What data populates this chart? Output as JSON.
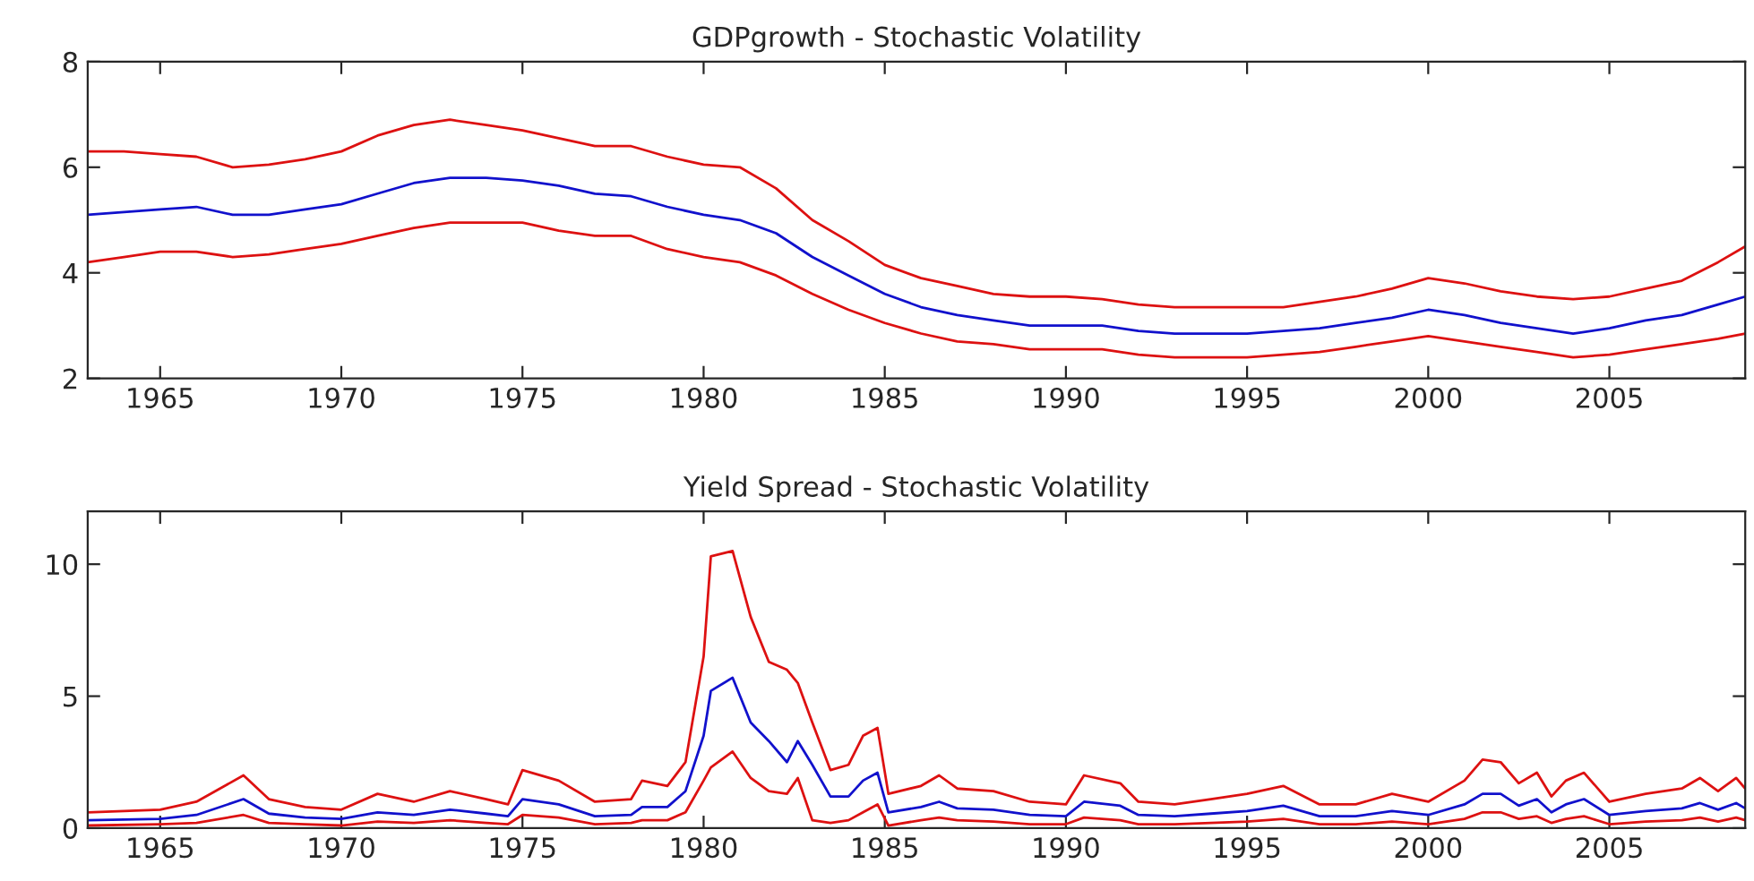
{
  "chart_data": [
    {
      "type": "line",
      "title": "GDPgrowth - Stochastic Volatility",
      "xlim": [
        1963,
        2008.75
      ],
      "xticks": [
        1965,
        1970,
        1975,
        1980,
        1985,
        1990,
        1995,
        2000,
        2005
      ],
      "ylim": [
        2,
        8
      ],
      "yticks": [
        2,
        4,
        6,
        8
      ],
      "grid": false,
      "legend": false,
      "line_style": "solid",
      "marker": "none",
      "x": [
        1963,
        1964,
        1965,
        1966,
        1967,
        1968,
        1969,
        1970,
        1971,
        1972,
        1973,
        1974,
        1975,
        1976,
        1977,
        1978,
        1979,
        1980,
        1981,
        1982,
        1983,
        1984,
        1985,
        1986,
        1987,
        1988,
        1989,
        1990,
        1991,
        1992,
        1993,
        1994,
        1995,
        1996,
        1997,
        1998,
        1999,
        2000,
        2001,
        2002,
        2003,
        2004,
        2005,
        2006,
        2007,
        2008,
        2008.75
      ],
      "series": [
        {
          "color": "#dd1111",
          "values": [
            6.3,
            6.3,
            6.25,
            6.2,
            6.0,
            6.05,
            6.15,
            6.3,
            6.6,
            6.8,
            6.9,
            6.8,
            6.7,
            6.55,
            6.4,
            6.4,
            6.2,
            6.05,
            6.0,
            5.6,
            5.0,
            4.6,
            4.15,
            3.9,
            3.75,
            3.6,
            3.55,
            3.55,
            3.5,
            3.4,
            3.35,
            3.35,
            3.35,
            3.35,
            3.45,
            3.55,
            3.7,
            3.9,
            3.8,
            3.65,
            3.55,
            3.5,
            3.55,
            3.7,
            3.85,
            4.2,
            4.5
          ]
        },
        {
          "color": "#1111cc",
          "values": [
            5.1,
            5.15,
            5.2,
            5.25,
            5.1,
            5.1,
            5.2,
            5.3,
            5.5,
            5.7,
            5.8,
            5.8,
            5.75,
            5.65,
            5.5,
            5.45,
            5.25,
            5.1,
            5.0,
            4.75,
            4.3,
            3.95,
            3.6,
            3.35,
            3.2,
            3.1,
            3.0,
            3.0,
            3.0,
            2.9,
            2.85,
            2.85,
            2.85,
            2.9,
            2.95,
            3.05,
            3.15,
            3.3,
            3.2,
            3.05,
            2.95,
            2.85,
            2.95,
            3.1,
            3.2,
            3.4,
            3.55
          ]
        },
        {
          "color": "#dd1111",
          "values": [
            4.2,
            4.3,
            4.4,
            4.4,
            4.3,
            4.35,
            4.45,
            4.55,
            4.7,
            4.85,
            4.95,
            4.95,
            4.95,
            4.8,
            4.7,
            4.7,
            4.45,
            4.3,
            4.2,
            3.95,
            3.6,
            3.3,
            3.05,
            2.85,
            2.7,
            2.65,
            2.55,
            2.55,
            2.55,
            2.45,
            2.4,
            2.4,
            2.4,
            2.45,
            2.5,
            2.6,
            2.7,
            2.8,
            2.7,
            2.6,
            2.5,
            2.4,
            2.45,
            2.55,
            2.65,
            2.75,
            2.85
          ]
        }
      ]
    },
    {
      "type": "line",
      "title": "Yield Spread - Stochastic Volatility",
      "xlim": [
        1963,
        2008.75
      ],
      "xticks": [
        1965,
        1970,
        1975,
        1980,
        1985,
        1990,
        1995,
        2000,
        2005
      ],
      "ylim": [
        0,
        12
      ],
      "yticks": [
        0,
        5,
        10
      ],
      "grid": false,
      "legend": false,
      "line_style": "solid",
      "marker": "none",
      "x": [
        1963,
        1965,
        1966,
        1967.3,
        1968,
        1969,
        1970,
        1971,
        1972,
        1973,
        1974,
        1974.6,
        1975,
        1976,
        1977,
        1978,
        1978.3,
        1979,
        1979.5,
        1980,
        1980.2,
        1980.8,
        1981.3,
        1981.8,
        1982.3,
        1982.6,
        1983,
        1983.5,
        1984,
        1984.4,
        1984.8,
        1985.1,
        1986,
        1986.5,
        1987,
        1988,
        1989,
        1990,
        1990.5,
        1991.5,
        1992,
        1993,
        1994,
        1995,
        1996,
        1997,
        1998,
        1999,
        2000,
        2001,
        2001.5,
        2002,
        2002.5,
        2003,
        2003.4,
        2003.8,
        2004.3,
        2005,
        2006,
        2007,
        2007.5,
        2008,
        2008.5,
        2008.75
      ],
      "series": [
        {
          "color": "#dd1111",
          "values": [
            0.6,
            0.7,
            1.0,
            2.0,
            1.1,
            0.8,
            0.7,
            1.3,
            1.0,
            1.4,
            1.1,
            0.9,
            2.2,
            1.8,
            1.0,
            1.1,
            1.8,
            1.6,
            2.5,
            6.5,
            10.3,
            10.5,
            8.0,
            6.3,
            6.0,
            5.5,
            4.0,
            2.2,
            2.4,
            3.5,
            3.8,
            1.3,
            1.6,
            2.0,
            1.5,
            1.4,
            1.0,
            0.9,
            2.0,
            1.7,
            1.0,
            0.9,
            1.1,
            1.3,
            1.6,
            0.9,
            0.9,
            1.3,
            1.0,
            1.8,
            2.6,
            2.5,
            1.7,
            2.1,
            1.2,
            1.8,
            2.1,
            1.0,
            1.3,
            1.5,
            1.9,
            1.4,
            1.9,
            1.5
          ]
        },
        {
          "color": "#1111cc",
          "values": [
            0.3,
            0.35,
            0.5,
            1.1,
            0.55,
            0.4,
            0.35,
            0.6,
            0.5,
            0.7,
            0.55,
            0.45,
            1.1,
            0.9,
            0.45,
            0.5,
            0.8,
            0.8,
            1.4,
            3.5,
            5.2,
            5.7,
            4.0,
            3.3,
            2.5,
            3.3,
            2.4,
            1.2,
            1.2,
            1.8,
            2.1,
            0.6,
            0.8,
            1.0,
            0.75,
            0.7,
            0.5,
            0.45,
            1.0,
            0.85,
            0.5,
            0.45,
            0.55,
            0.65,
            0.85,
            0.45,
            0.45,
            0.65,
            0.5,
            0.9,
            1.3,
            1.3,
            0.85,
            1.1,
            0.6,
            0.9,
            1.1,
            0.5,
            0.65,
            0.75,
            0.95,
            0.7,
            0.95,
            0.75
          ]
        },
        {
          "color": "#dd1111",
          "values": [
            0.1,
            0.15,
            0.2,
            0.5,
            0.2,
            0.15,
            0.1,
            0.25,
            0.2,
            0.3,
            0.2,
            0.15,
            0.5,
            0.4,
            0.15,
            0.2,
            0.3,
            0.3,
            0.6,
            1.8,
            2.3,
            2.9,
            1.9,
            1.4,
            1.3,
            1.9,
            0.3,
            0.2,
            0.3,
            0.6,
            0.9,
            0.1,
            0.3,
            0.4,
            0.3,
            0.25,
            0.15,
            0.15,
            0.4,
            0.3,
            0.15,
            0.15,
            0.2,
            0.25,
            0.35,
            0.15,
            0.15,
            0.25,
            0.15,
            0.35,
            0.6,
            0.6,
            0.35,
            0.45,
            0.2,
            0.35,
            0.45,
            0.15,
            0.25,
            0.3,
            0.4,
            0.25,
            0.4,
            0.3
          ]
        }
      ]
    }
  ]
}
